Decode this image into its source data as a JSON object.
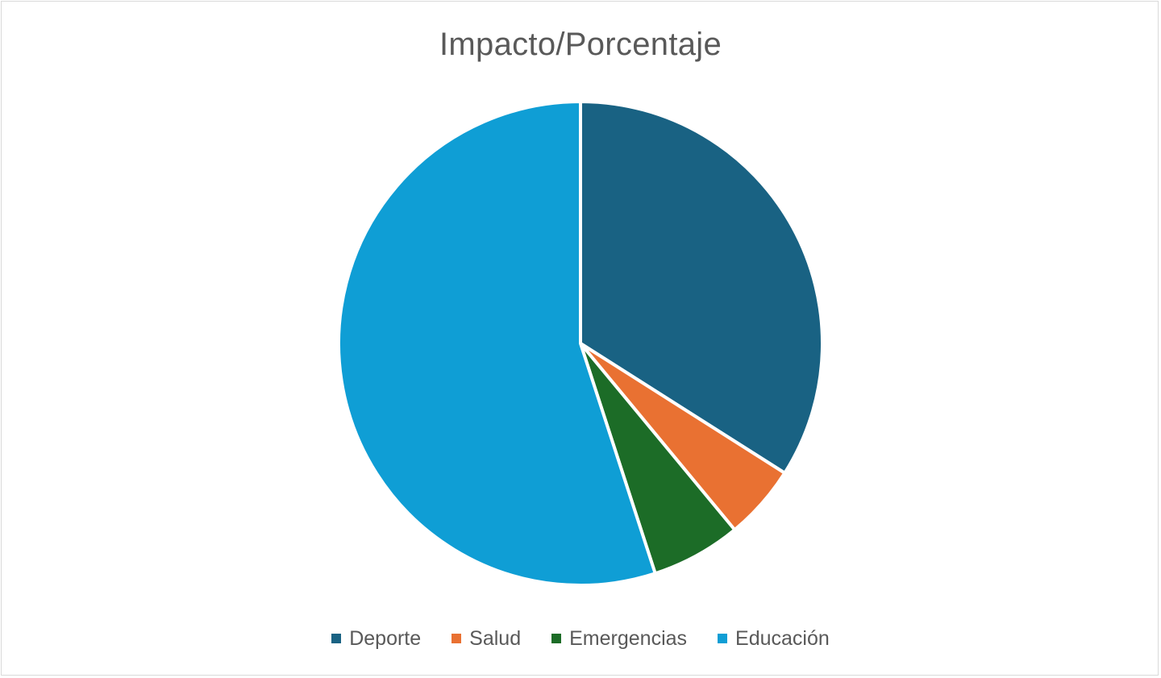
{
  "chart_data": {
    "type": "pie",
    "title": "Impacto/Porcentaje",
    "categories": [
      "Deporte",
      "Salud",
      "Emergencias",
      "Educación"
    ],
    "values": [
      34,
      5,
      6,
      55
    ],
    "colors": [
      "#196283",
      "#e97132",
      "#1c6c27",
      "#0f9ed5"
    ],
    "start_angle_deg": 0,
    "direction": "clockwise",
    "legend_position": "bottom",
    "xlabel": "",
    "ylabel": ""
  },
  "legend": {
    "items": [
      {
        "label": "Deporte",
        "color": "#196283"
      },
      {
        "label": "Salud",
        "color": "#e97132"
      },
      {
        "label": "Emergencias",
        "color": "#1c6c27"
      },
      {
        "label": "Educación",
        "color": "#0f9ed5"
      }
    ]
  }
}
